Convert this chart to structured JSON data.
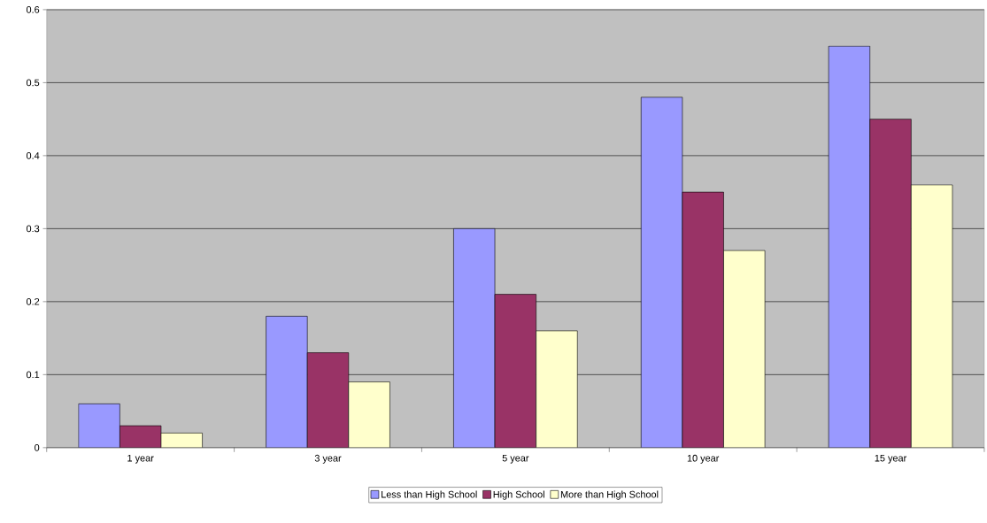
{
  "chart_data": {
    "type": "bar",
    "categories": [
      "1 year",
      "3 year",
      "5 year",
      "10 year",
      "15 year"
    ],
    "series": [
      {
        "name": "Less than High School",
        "color": "#9999ff",
        "values": [
          0.06,
          0.18,
          0.3,
          0.48,
          0.55
        ]
      },
      {
        "name": "High School",
        "color": "#993366",
        "values": [
          0.03,
          0.13,
          0.21,
          0.35,
          0.45
        ]
      },
      {
        "name": "More than High School",
        "color": "#ffffcc",
        "values": [
          0.02,
          0.09,
          0.16,
          0.27,
          0.36
        ]
      }
    ],
    "ylim": [
      0,
      0.6
    ],
    "yticks": [
      0,
      0.1,
      0.2,
      0.3,
      0.4,
      0.5,
      0.6
    ],
    "grid": "y",
    "legend": "bottom"
  }
}
